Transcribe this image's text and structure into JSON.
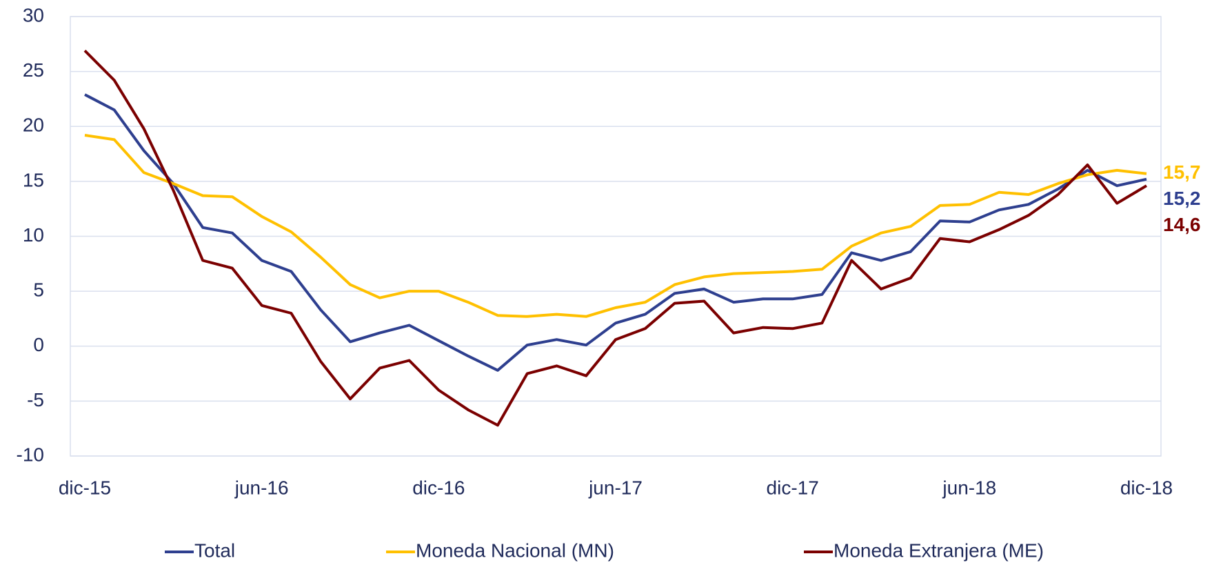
{
  "chart_data": {
    "type": "line",
    "categories": [
      "dic-15",
      null,
      null,
      null,
      null,
      null,
      "jun-16",
      null,
      null,
      null,
      null,
      null,
      "dic-16",
      null,
      null,
      null,
      null,
      null,
      "jun-17",
      null,
      null,
      null,
      null,
      null,
      "dic-17",
      null,
      null,
      null,
      null,
      null,
      "jun-18",
      null,
      null,
      null,
      null,
      null,
      "dic-18"
    ],
    "series": [
      {
        "name": "Total",
        "color": "#2e3f8f",
        "values": [
          22.9,
          21.5,
          17.8,
          14.8,
          10.8,
          10.3,
          7.8,
          6.8,
          3.3,
          0.4,
          1.2,
          1.9,
          0.5,
          -0.9,
          -2.2,
          0.1,
          0.6,
          0.1,
          2.1,
          2.9,
          4.8,
          5.2,
          4.0,
          4.3,
          4.3,
          4.7,
          8.5,
          7.8,
          8.6,
          11.4,
          11.3,
          12.4,
          12.9,
          14.3,
          16.0,
          14.6,
          15.2
        ],
        "value_labels": [
          null,
          null,
          null,
          null,
          null,
          null,
          null,
          null,
          null,
          null,
          null,
          null,
          null,
          null,
          null,
          null,
          null,
          null,
          null,
          null,
          null,
          null,
          null,
          null,
          null,
          null,
          null,
          null,
          null,
          null,
          null,
          null,
          null,
          null,
          null,
          null,
          "15,2"
        ]
      },
      {
        "name": "Moneda Nacional (MN)",
        "color": "#ffc000",
        "values": [
          19.2,
          18.8,
          15.8,
          14.8,
          13.7,
          13.6,
          11.8,
          10.4,
          8.1,
          5.6,
          4.4,
          5.0,
          5.0,
          4.0,
          2.8,
          2.7,
          2.9,
          2.7,
          3.5,
          4.0,
          5.6,
          6.3,
          6.6,
          6.7,
          6.8,
          7.0,
          9.1,
          10.3,
          10.9,
          12.8,
          12.9,
          14.0,
          13.8,
          14.8,
          15.6,
          16.0,
          15.7
        ],
        "value_labels": [
          null,
          null,
          null,
          null,
          null,
          null,
          null,
          null,
          null,
          null,
          null,
          null,
          null,
          null,
          null,
          null,
          null,
          null,
          null,
          null,
          null,
          null,
          null,
          null,
          null,
          null,
          null,
          null,
          null,
          null,
          null,
          null,
          null,
          null,
          null,
          null,
          "15,7"
        ]
      },
      {
        "name": "Moneda Extranjera (ME)",
        "color": "#7b0000",
        "values": [
          26.9,
          24.2,
          19.8,
          14.2,
          7.8,
          7.1,
          3.7,
          3.0,
          -1.4,
          -4.8,
          -2.0,
          -1.3,
          -4.0,
          -5.8,
          -7.2,
          -2.5,
          -1.8,
          -2.7,
          0.6,
          1.6,
          3.9,
          4.1,
          1.2,
          1.7,
          1.6,
          2.1,
          7.8,
          5.2,
          6.2,
          9.8,
          9.5,
          10.6,
          11.9,
          13.8,
          16.5,
          13.0,
          14.6
        ],
        "value_labels": [
          null,
          null,
          null,
          null,
          null,
          null,
          null,
          null,
          null,
          null,
          null,
          null,
          null,
          null,
          null,
          null,
          null,
          null,
          null,
          null,
          null,
          null,
          null,
          null,
          null,
          null,
          null,
          null,
          null,
          null,
          null,
          null,
          null,
          null,
          null,
          null,
          "14,6"
        ]
      }
    ],
    "ylim": [
      -10,
      30
    ],
    "yticks": [
      -10,
      -5,
      0,
      5,
      10,
      15,
      20,
      25,
      30
    ],
    "grid": true,
    "legend": "bottom"
  }
}
